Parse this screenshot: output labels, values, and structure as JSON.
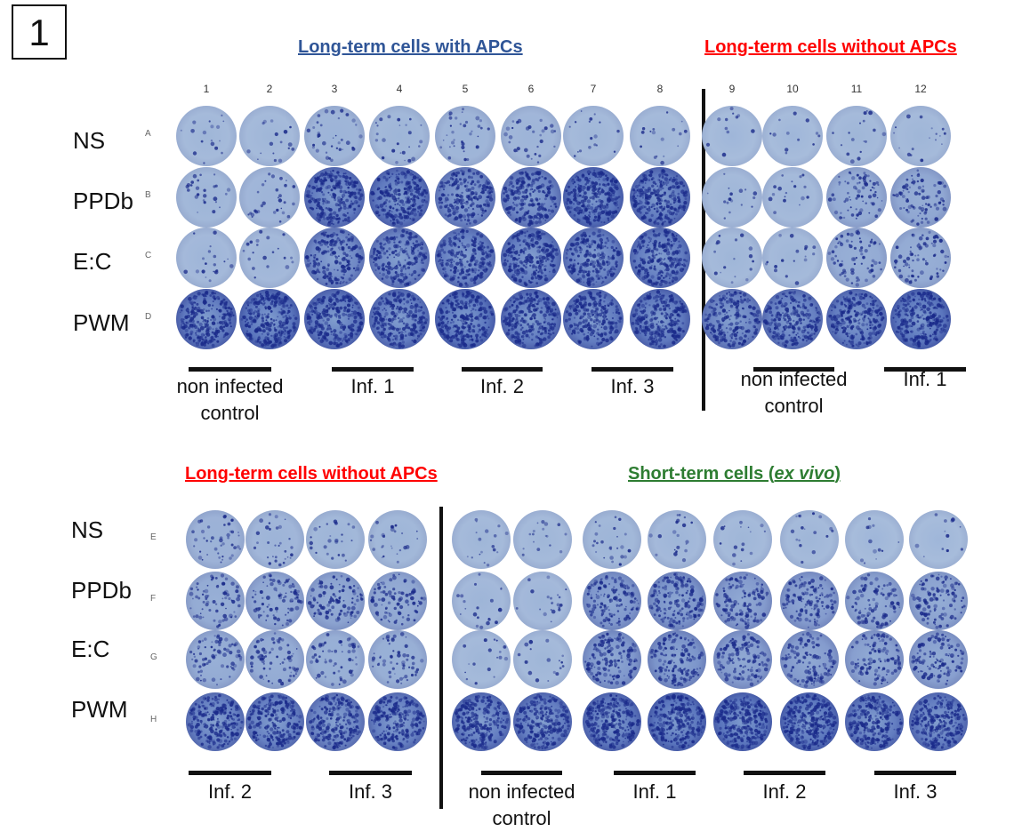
{
  "panel_number": "1",
  "colors": {
    "heading_blue": "#2f5597",
    "heading_red": "#ff0000",
    "heading_green": "#2e7d32",
    "well_background": "#a9bedc",
    "spot": "#1a2a8a"
  },
  "top": {
    "heading_with_apcs": "Long-term cells with APCs",
    "heading_without_apcs": "Long-term cells without APCs",
    "column_numbers": [
      "1",
      "2",
      "3",
      "4",
      "5",
      "6",
      "7",
      "8",
      "9",
      "10",
      "11",
      "12"
    ],
    "rows": [
      {
        "label": "NS",
        "letter": "A"
      },
      {
        "label": "PPDb",
        "letter": "B"
      },
      {
        "label": "E:C",
        "letter": "C"
      },
      {
        "label": "PWM",
        "letter": "D"
      }
    ],
    "groups": [
      {
        "line1": "non infected",
        "line2": "control"
      },
      {
        "line1": "Inf. 1",
        "line2": ""
      },
      {
        "line1": "Inf. 2",
        "line2": ""
      },
      {
        "line1": "Inf. 3",
        "line2": ""
      },
      {
        "line1": "non infected",
        "line2": "control"
      },
      {
        "line1": "Inf. 1",
        "line2": ""
      }
    ],
    "well_density": [
      [
        0.05,
        0.05,
        0.12,
        0.08,
        0.12,
        0.1,
        0.05,
        0.05,
        0.03,
        0.03,
        0.05,
        0.05
      ],
      [
        0.08,
        0.1,
        0.85,
        0.9,
        0.7,
        0.75,
        0.95,
        0.9,
        0.05,
        0.05,
        0.25,
        0.3
      ],
      [
        0.06,
        0.06,
        0.7,
        0.75,
        0.8,
        0.85,
        0.8,
        0.85,
        0.05,
        0.05,
        0.25,
        0.25
      ],
      [
        0.9,
        0.95,
        0.9,
        0.85,
        0.95,
        0.9,
        0.85,
        0.9,
        0.75,
        0.8,
        0.85,
        0.95
      ]
    ]
  },
  "bottom": {
    "heading_without_apcs": "Long-term cells without APCs",
    "heading_short_term_prefix": "Short-term cells (",
    "heading_short_term_italic": "ex vivo",
    "heading_short_term_suffix": ")",
    "rows": [
      {
        "label": "NS",
        "letter": "E"
      },
      {
        "label": "PPDb",
        "letter": "F"
      },
      {
        "label": "E:C",
        "letter": "G"
      },
      {
        "label": "PWM",
        "letter": "H"
      }
    ],
    "groups": [
      {
        "line1": "Inf. 2",
        "line2": ""
      },
      {
        "line1": "Inf. 3",
        "line2": ""
      },
      {
        "line1": "non infected",
        "line2": "control"
      },
      {
        "line1": "Inf. 1",
        "line2": ""
      },
      {
        "line1": "Inf. 2",
        "line2": ""
      },
      {
        "line1": "Inf. 3",
        "line2": ""
      }
    ],
    "well_density": [
      [
        0.15,
        0.1,
        0.08,
        0.08,
        0.05,
        0.05,
        0.08,
        0.06,
        0.05,
        0.05,
        0.03,
        0.03
      ],
      [
        0.25,
        0.3,
        0.35,
        0.3,
        0.06,
        0.06,
        0.5,
        0.55,
        0.45,
        0.45,
        0.35,
        0.35
      ],
      [
        0.25,
        0.25,
        0.2,
        0.2,
        0.05,
        0.05,
        0.5,
        0.55,
        0.45,
        0.45,
        0.4,
        0.4
      ],
      [
        0.8,
        0.8,
        0.75,
        0.8,
        0.85,
        0.85,
        0.9,
        0.95,
        0.95,
        0.95,
        0.85,
        0.85
      ]
    ]
  }
}
